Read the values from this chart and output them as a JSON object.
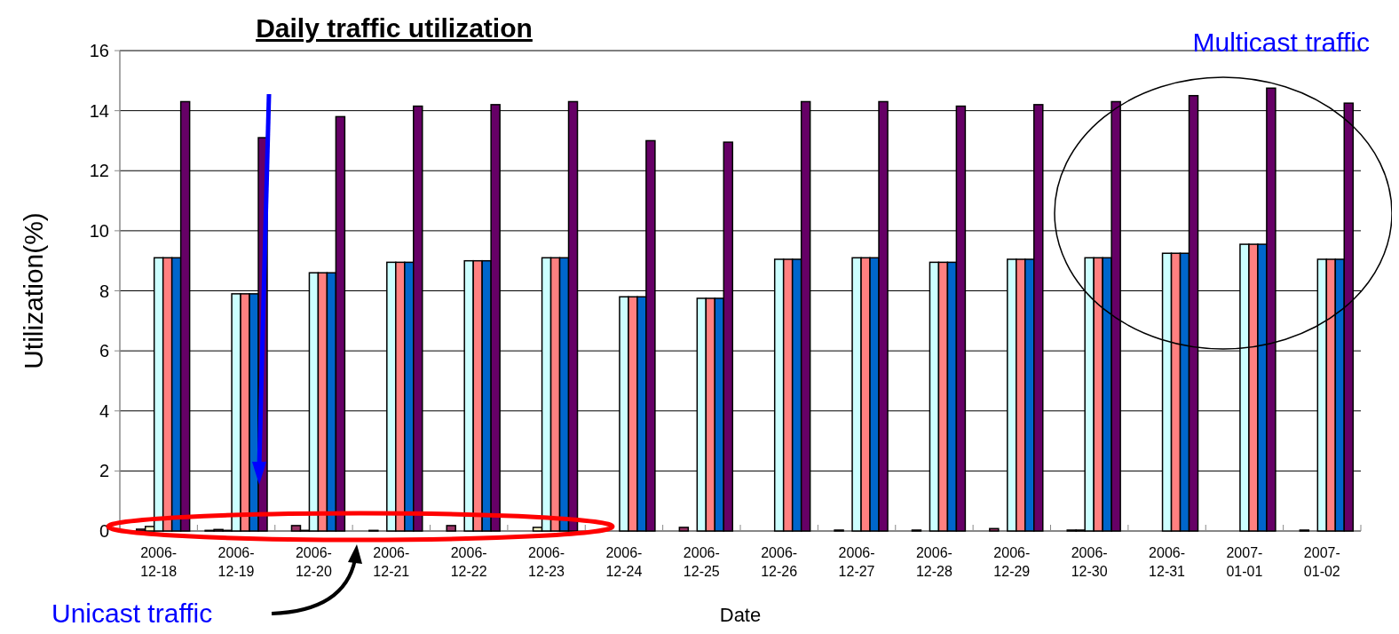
{
  "chart_data": {
    "type": "bar",
    "title": "Daily traffic utilization",
    "xlabel": "Date",
    "ylabel": "Utilization(%)",
    "categories": [
      "2006-12-18",
      "2006-12-19",
      "2006-12-20",
      "2006-12-21",
      "2006-12-22",
      "2006-12-23",
      "2006-12-24",
      "2006-12-25",
      "2006-12-26",
      "2006-12-27",
      "2006-12-28",
      "2006-12-29",
      "2006-12-30",
      "2006-12-31",
      "2007-01-01",
      "2007-01-02"
    ],
    "series": [
      {
        "color": "#333366",
        "values": [
          0,
          0.02,
          0,
          0,
          0,
          0,
          0,
          0,
          0,
          0,
          0,
          0,
          0,
          0,
          0,
          0
        ]
      },
      {
        "color": "#993366",
        "values": [
          0.06,
          0.05,
          0.18,
          0.02,
          0.18,
          0,
          0,
          0.12,
          0,
          0.03,
          0.03,
          0.08,
          0.03,
          0,
          0,
          0.03
        ]
      },
      {
        "color": "#ffffcc",
        "values": [
          0.15,
          0.02,
          0.02,
          0,
          0,
          0.12,
          0,
          0,
          0,
          0,
          0,
          0,
          0.03,
          0,
          0,
          0
        ]
      },
      {
        "color": "#ccffff",
        "values": [
          9.1,
          7.9,
          8.6,
          8.95,
          9.0,
          9.1,
          7.8,
          7.75,
          9.05,
          9.1,
          8.95,
          9.05,
          9.1,
          9.25,
          9.55,
          9.05
        ]
      },
      {
        "color": "#ff8080",
        "values": [
          9.1,
          7.9,
          8.6,
          8.95,
          9.0,
          9.1,
          7.8,
          7.75,
          9.05,
          9.1,
          8.95,
          9.05,
          9.1,
          9.25,
          9.55,
          9.05
        ]
      },
      {
        "color": "#0066cc",
        "values": [
          9.1,
          7.9,
          8.6,
          8.95,
          9.0,
          9.1,
          7.8,
          7.75,
          9.05,
          9.1,
          8.95,
          9.05,
          9.1,
          9.25,
          9.55,
          9.05
        ]
      },
      {
        "color": "#660066",
        "values": [
          14.3,
          13.1,
          13.8,
          14.15,
          14.2,
          14.3,
          13.0,
          12.95,
          14.3,
          14.3,
          14.15,
          14.2,
          14.3,
          14.5,
          14.75,
          14.25
        ]
      }
    ],
    "ylim": [
      0,
      16
    ],
    "yticks": [
      0,
      2,
      4,
      6,
      8,
      10,
      12,
      14,
      16
    ],
    "grid": "y",
    "annotations": [
      "Multicast traffic",
      "Unicast traffic"
    ]
  }
}
